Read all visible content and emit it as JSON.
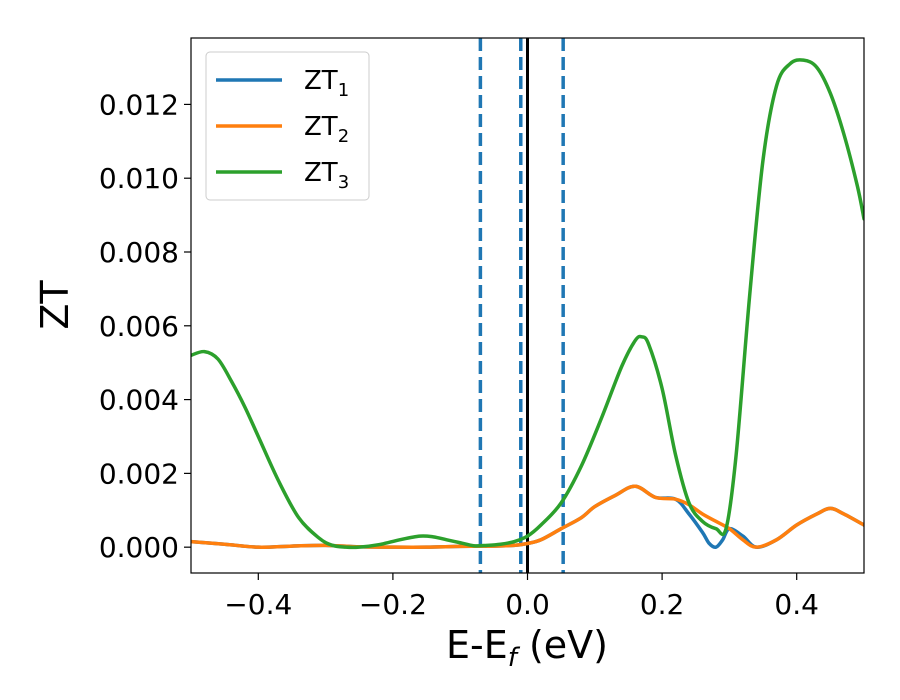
{
  "chart_data": {
    "type": "line",
    "xlabel": "E-E_f (eV)",
    "xlabel_parts": {
      "main": "E-E",
      "sub": "f",
      "unit": " (eV)"
    },
    "ylabel": "ZT",
    "xlim": [
      -0.5,
      0.5
    ],
    "ylim": [
      -0.0007,
      0.0138
    ],
    "x_ticks": [
      -0.4,
      -0.2,
      0.0,
      0.2,
      0.4
    ],
    "x_tick_labels": [
      "−0.4",
      "−0.2",
      "0.0",
      "0.2",
      "0.4"
    ],
    "y_ticks": [
      0.0,
      0.002,
      0.004,
      0.006,
      0.008,
      0.01,
      0.012
    ],
    "y_tick_labels": [
      "0.000",
      "0.002",
      "0.004",
      "0.006",
      "0.008",
      "0.010",
      "0.012"
    ],
    "grid": false,
    "legend_position": "top-left",
    "vertical_lines": [
      {
        "x": -0.07,
        "style": "dashed",
        "color": "#1f77b4"
      },
      {
        "x": -0.01,
        "style": "dashed",
        "color": "#1f77b4"
      },
      {
        "x": 0.0,
        "style": "solid",
        "color": "#000000"
      },
      {
        "x": 0.053,
        "style": "dashed",
        "color": "#1f77b4"
      }
    ],
    "series": [
      {
        "name": "ZT_1",
        "label_main": "ZT",
        "label_sub": "1",
        "color": "#1f77b4",
        "x": [
          -0.5,
          -0.45,
          -0.4,
          -0.35,
          -0.3,
          -0.25,
          -0.2,
          -0.15,
          -0.1,
          -0.05,
          -0.02,
          0.0,
          0.02,
          0.05,
          0.08,
          0.1,
          0.13,
          0.16,
          0.19,
          0.22,
          0.24,
          0.26,
          0.27,
          0.28,
          0.29,
          0.3,
          0.32,
          0.34,
          0.37,
          0.4,
          0.43,
          0.45,
          0.47,
          0.5
        ],
        "y": [
          0.00015,
          8e-05,
          0.0,
          3e-05,
          5e-05,
          1e-05,
          0.0,
          0.0,
          2e-05,
          3e-05,
          5e-05,
          0.0001,
          0.0002,
          0.0005,
          0.0008,
          0.0011,
          0.0014,
          0.00165,
          0.00135,
          0.0013,
          0.0009,
          0.0004,
          0.0001,
          0.0,
          0.0002,
          0.0005,
          0.0003,
          0.0,
          0.0002,
          0.0006,
          0.0009,
          0.00105,
          0.0009,
          0.0006
        ]
      },
      {
        "name": "ZT_2",
        "label_main": "ZT",
        "label_sub": "2",
        "color": "#ff7f0e",
        "x": [
          -0.5,
          -0.45,
          -0.4,
          -0.35,
          -0.3,
          -0.25,
          -0.2,
          -0.15,
          -0.1,
          -0.05,
          -0.02,
          0.0,
          0.02,
          0.05,
          0.08,
          0.1,
          0.13,
          0.16,
          0.19,
          0.22,
          0.24,
          0.26,
          0.28,
          0.3,
          0.32,
          0.34,
          0.37,
          0.4,
          0.43,
          0.45,
          0.47,
          0.5
        ],
        "y": [
          0.00015,
          8e-05,
          0.0,
          3e-05,
          5e-05,
          1e-05,
          0.0,
          0.0,
          2e-05,
          3e-05,
          5e-05,
          0.0001,
          0.0002,
          0.0005,
          0.0008,
          0.0011,
          0.0014,
          0.00165,
          0.00135,
          0.0013,
          0.00115,
          0.0009,
          0.0007,
          0.0005,
          0.0002,
          0.0,
          0.0002,
          0.0006,
          0.0009,
          0.00105,
          0.0009,
          0.0006
        ]
      },
      {
        "name": "ZT_3",
        "label_main": "ZT",
        "label_sub": "3",
        "color": "#2ca02c",
        "x": [
          -0.5,
          -0.48,
          -0.46,
          -0.44,
          -0.42,
          -0.4,
          -0.37,
          -0.34,
          -0.31,
          -0.29,
          -0.27,
          -0.25,
          -0.22,
          -0.19,
          -0.16,
          -0.14,
          -0.12,
          -0.1,
          -0.08,
          -0.06,
          -0.04,
          -0.02,
          0.0,
          0.02,
          0.05,
          0.08,
          0.11,
          0.14,
          0.16,
          0.17,
          0.18,
          0.2,
          0.22,
          0.24,
          0.26,
          0.28,
          0.295,
          0.31,
          0.33,
          0.35,
          0.37,
          0.39,
          0.41,
          0.43,
          0.45,
          0.47,
          0.49,
          0.5
        ],
        "y": [
          0.0052,
          0.0053,
          0.0051,
          0.0045,
          0.0038,
          0.003,
          0.0018,
          0.0008,
          0.00025,
          5e-05,
          0.0,
          0.0,
          7e-05,
          0.0002,
          0.0003,
          0.00028,
          0.0002,
          0.00012,
          4e-05,
          5e-05,
          8e-05,
          0.00015,
          0.0003,
          0.0006,
          0.0012,
          0.0022,
          0.0035,
          0.0049,
          0.0056,
          0.0057,
          0.0055,
          0.0043,
          0.0025,
          0.0012,
          0.0007,
          0.0005,
          0.0005,
          0.0025,
          0.0068,
          0.0105,
          0.0125,
          0.0131,
          0.0132,
          0.013,
          0.0123,
          0.0112,
          0.0098,
          0.0089
        ]
      }
    ]
  }
}
